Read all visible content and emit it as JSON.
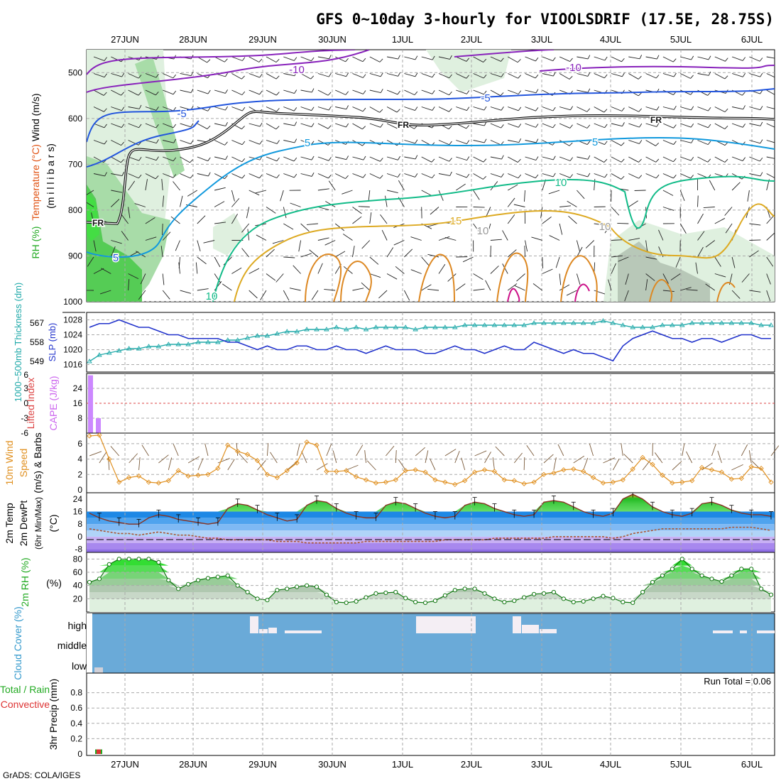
{
  "title": "GFS 0~10day 3-hourly for VIOOLSDRIF (17.5E, 28.75S)",
  "footer": "GrADS: COLA/IGES",
  "run_total": "Run Total = 0.06",
  "colors": {
    "rh_green": "#44cc44",
    "cape_bar": "#cc88ff",
    "slp_line": "#2233cc",
    "thickness_line": "#22aaaa",
    "wind10m": "#e09020",
    "cloud_fill": "#6aaad8",
    "cloud_clear": "#f4eef4",
    "rh2m_green": "#22cc22"
  },
  "chart_data": [
    {
      "type": "line",
      "name": "upper-air",
      "dates": [
        "27JUN",
        "28JUN",
        "29JUN",
        "30JUN",
        "1JUL",
        "2JUL",
        "3JUL",
        "4JUL",
        "5JUL",
        "6JUL"
      ],
      "ylabel_parts": [
        "RH (%)",
        "Temperature (°C)",
        "Wind (m/s)"
      ],
      "ylabel2": "(m i l l i b a r s)",
      "yticks": [
        "500",
        "600",
        "700",
        "800",
        "900",
        "1000"
      ],
      "ylim": [
        1000,
        450
      ],
      "contour_labels": [
        "-10",
        "-10",
        "-5",
        "-5",
        "FR",
        "FR",
        "FR",
        "5",
        "5",
        "5",
        "10",
        "10",
        "15",
        "10",
        "10"
      ]
    },
    {
      "type": "line",
      "name": "slp-thickness",
      "ylabel_left": "1000~500mb Thickness (dm)",
      "ylabel_right": "SLP (mb)",
      "yticks_left": [
        "567",
        "558",
        "549"
      ],
      "yticks_right": [
        "1028",
        "1024",
        "1020",
        "1016"
      ],
      "slp": [
        1026,
        1027,
        1027,
        1028,
        1027,
        1026,
        1026,
        1025,
        1024,
        1024,
        1023,
        1023,
        1023,
        1023,
        1022,
        1022,
        1021,
        1020,
        1021,
        1020,
        1020,
        1021,
        1021,
        1020,
        1020,
        1021,
        1020,
        1020,
        1019,
        1020,
        1021,
        1020,
        1020,
        1020,
        1019,
        1019,
        1020,
        1021,
        1020,
        1020,
        1019,
        1020,
        1021,
        1020,
        1020,
        1022,
        1021,
        1020,
        1019,
        1020,
        1019,
        1019,
        1018,
        1017,
        1021,
        1023,
        1024,
        1025,
        1024,
        1023,
        1023,
        1022,
        1023,
        1023,
        1022,
        1023,
        1024,
        1024,
        1023,
        1023
      ],
      "thickness": [
        549,
        552,
        553,
        554,
        555,
        555,
        556,
        556,
        557,
        557,
        557,
        558,
        558,
        558,
        559,
        559,
        560,
        561,
        561,
        562,
        563,
        563,
        564,
        564,
        564,
        565,
        564,
        565,
        564,
        565,
        565,
        565,
        565,
        564,
        565,
        565,
        565,
        565,
        566,
        566,
        566,
        566,
        566,
        566,
        566,
        567,
        567,
        567,
        567,
        567,
        567,
        567,
        568,
        567,
        566,
        565,
        565,
        565,
        566,
        566,
        566,
        567,
        567,
        567,
        567,
        567,
        567,
        567,
        566,
        566
      ]
    },
    {
      "type": "bar",
      "name": "cape-lifted-index",
      "ylabel_left": "Lifted Index",
      "ylabel_right": "CAPE (J/kg)",
      "yticks_left": [
        "6",
        "3",
        "0",
        "-3",
        "-6"
      ],
      "yticks_right": [
        "24",
        "16",
        "8"
      ],
      "cape": [
        31,
        8
      ]
    },
    {
      "type": "line",
      "name": "wind10m",
      "ylabel": "10m Wind Speed (m/s) & Barbs",
      "ylabel_parts": [
        "10m Wind",
        "Speed",
        "(m/s) & Barbs"
      ],
      "yticks": [
        "6",
        "4",
        "2",
        "0"
      ],
      "ylim": [
        0,
        7
      ],
      "values": [
        7.0,
        7.1,
        4.0,
        1.0,
        1.6,
        1.8,
        1.0,
        0.9,
        1.2,
        2.5,
        1.8,
        1.9,
        2.0,
        2.8,
        5.8,
        5.0,
        4.6,
        3.8,
        2.0,
        1.6,
        2.5,
        3.5,
        6.2,
        5.8,
        2.4,
        2.4,
        2.5,
        1.7,
        1.3,
        0.9,
        1.0,
        1.3,
        2.5,
        2.6,
        2.3,
        1.3,
        1.0,
        0.7,
        1.2,
        2.3,
        2.6,
        2.4,
        1.3,
        1.2,
        0.8,
        1.0,
        2.0,
        2.2,
        2.6,
        2.7,
        2.4,
        1.6,
        0.9,
        1.0,
        1.3,
        2.7,
        4.2,
        3.3,
        1.9,
        0.9,
        1.0,
        1.2,
        2.9,
        2.6,
        2.3,
        1.4,
        1.5,
        3.0,
        2.8,
        1.0
      ]
    },
    {
      "type": "area",
      "name": "temp-dewpoint",
      "ylabel_parts": [
        "2m Temp",
        "2m DewPt",
        "(6hr Min/Max)",
        "(°C)"
      ],
      "yticks": [
        "24",
        "16",
        "8",
        "0",
        "-8"
      ],
      "ylim": [
        -10,
        28
      ],
      "temp": [
        15,
        12,
        10,
        9,
        8,
        8,
        12,
        14,
        13,
        11,
        10,
        9,
        8,
        9,
        18,
        21,
        20,
        17,
        14,
        12,
        10,
        11,
        20,
        23,
        22,
        18,
        15,
        13,
        12,
        12,
        20,
        22,
        21,
        18,
        15,
        13,
        12,
        13,
        20,
        22,
        21,
        18,
        16,
        14,
        13,
        14,
        22,
        23,
        22,
        19,
        16,
        14,
        13,
        15,
        24,
        27,
        24,
        19,
        16,
        14,
        13,
        15,
        21,
        22,
        20,
        17,
        15,
        14,
        14,
        13
      ],
      "dewpoint": [
        5,
        4,
        3,
        2,
        2,
        1,
        2,
        3,
        2,
        1,
        1,
        0,
        -1,
        -1,
        -2,
        -2,
        -2,
        -2,
        -2,
        -3,
        -3,
        -3,
        -4,
        -4,
        -4,
        -4,
        -4,
        -4,
        -3,
        -3,
        -3,
        -3,
        -3,
        -3,
        -3,
        -3,
        -2,
        -2,
        -2,
        -2,
        -2,
        -1,
        -1,
        -1,
        -1,
        -1,
        -1,
        0,
        0,
        0,
        0,
        0,
        0,
        -1,
        0,
        2,
        3,
        4,
        5,
        5,
        5,
        5,
        5,
        5,
        5,
        6,
        6,
        6,
        5,
        4
      ]
    },
    {
      "type": "area",
      "name": "rh2m",
      "ylabel": "2m RH (%)",
      "yticks": [
        "80",
        "60",
        "40",
        "20"
      ],
      "ylim": [
        0,
        90
      ],
      "values": [
        45,
        50,
        72,
        80,
        80,
        80,
        80,
        75,
        48,
        35,
        42,
        48,
        51,
        53,
        55,
        40,
        30,
        20,
        18,
        33,
        35,
        38,
        40,
        38,
        26,
        15,
        14,
        16,
        22,
        28,
        29,
        30,
        21,
        15,
        14,
        17,
        25,
        33,
        35,
        35,
        28,
        20,
        15,
        17,
        22,
        27,
        28,
        30,
        20,
        15,
        16,
        20,
        24,
        21,
        15,
        14,
        30,
        45,
        55,
        65,
        80,
        65,
        55,
        50,
        46,
        55,
        65,
        65,
        35,
        26
      ]
    },
    {
      "type": "bar",
      "name": "cloud-cover",
      "ylabel": "Cloud Cover (%)",
      "yticks": [
        "high",
        "middle",
        "low"
      ]
    },
    {
      "type": "bar",
      "name": "precip",
      "ylabel_left": "3hr Precip (mm)",
      "ylabel_parts": [
        "Total / Rain",
        "Convective"
      ],
      "yticks": [
        "0.8",
        "0.6",
        "0.4",
        "0.2",
        "0"
      ],
      "ylim": [
        0,
        1
      ],
      "precip": [
        0.06
      ]
    }
  ]
}
